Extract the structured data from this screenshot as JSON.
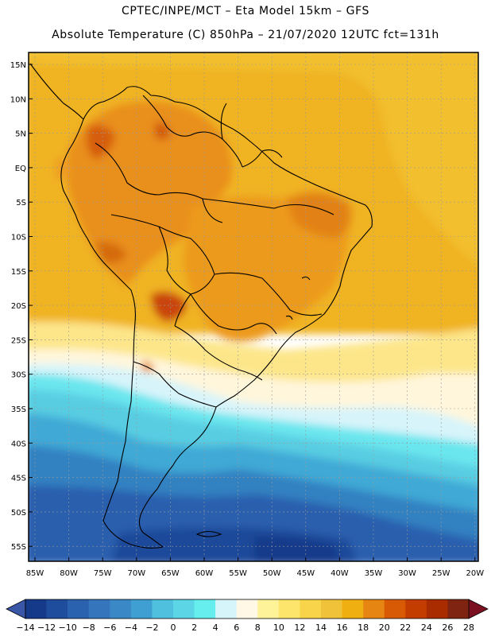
{
  "header": {
    "line1": "CPTEC/INPE/MCT –   Eta Model 15km – GFS",
    "line2": "Absolute Temperature (C) 850hPa – 21/07/2020 12UTC fct=131h"
  },
  "map": {
    "lat_labels": [
      "15N",
      "10N",
      "5N",
      "EQ",
      "5S",
      "10S",
      "15S",
      "20S",
      "25S",
      "30S",
      "35S",
      "40S",
      "45S",
      "50S",
      "55S"
    ],
    "lon_labels": [
      "85W",
      "80W",
      "75W",
      "70W",
      "65W",
      "60W",
      "55W",
      "50W",
      "45W",
      "40W",
      "35W",
      "30W",
      "25W",
      "20W"
    ],
    "lon_range": [
      -86,
      -20
    ],
    "lat_range": [
      -58,
      16
    ]
  },
  "colorbar": {
    "tick_labels": [
      "-14",
      "-12",
      "-10",
      "-8",
      "-6",
      "-4",
      "-2",
      "0",
      "2",
      "4",
      "6",
      "8",
      "10",
      "12",
      "14",
      "16",
      "18",
      "20",
      "22",
      "24",
      "26",
      "28"
    ],
    "colors": [
      "#163a8a",
      "#1e4d9e",
      "#2b62b0",
      "#3475bb",
      "#3b88c6",
      "#3f9fd2",
      "#4fc0dd",
      "#5cd6e6",
      "#66eeef",
      "#d6f5fb",
      "#fff8e6",
      "#fff39a",
      "#fde56b",
      "#f8d44a",
      "#f0c23a",
      "#efaf10",
      "#e78512",
      "#d95a05",
      "#c43d00",
      "#a82c00",
      "#7e2410"
    ],
    "under_color": "#3a56a6",
    "over_color": "#7a1020"
  }
}
